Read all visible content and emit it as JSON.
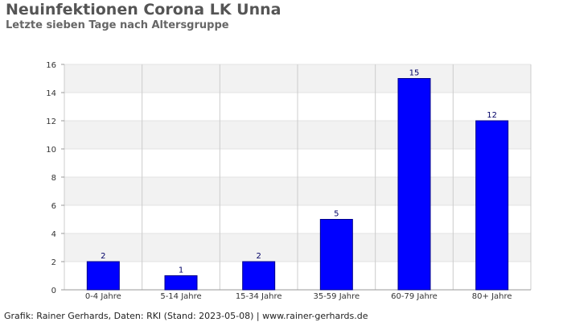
{
  "header": {
    "title": "Neuinfektionen Corona LK Unna",
    "subtitle": "Letzte sieben Tage nach Altersgruppe"
  },
  "footer": {
    "credit": "Grafik: Rainer Gerhards, Daten: RKI (Stand: 2023-05-08) | www.rainer-gerhards.de"
  },
  "colors": {
    "bar_fill": "#0000ff",
    "bar_stroke": "#00008b",
    "band_light": "#f2f2f2",
    "band_white": "#ffffff",
    "grid": "#cccccc"
  },
  "chart_data": {
    "type": "bar",
    "title": "Neuinfektionen Corona LK Unna",
    "subtitle": "Letzte sieben Tage nach Altersgruppe",
    "categories": [
      "0-4 Jahre",
      "5-14 Jahre",
      "15-34 Jahre",
      "35-59 Jahre",
      "60-79 Jahre",
      "80+ Jahre"
    ],
    "values": [
      2,
      1,
      2,
      5,
      15,
      12
    ],
    "ylim": [
      0,
      16
    ],
    "yticks": [
      0,
      2,
      4,
      6,
      8,
      10,
      12,
      14,
      16
    ],
    "xlabel": "",
    "ylabel": "",
    "grid": true,
    "data_labels": true
  }
}
